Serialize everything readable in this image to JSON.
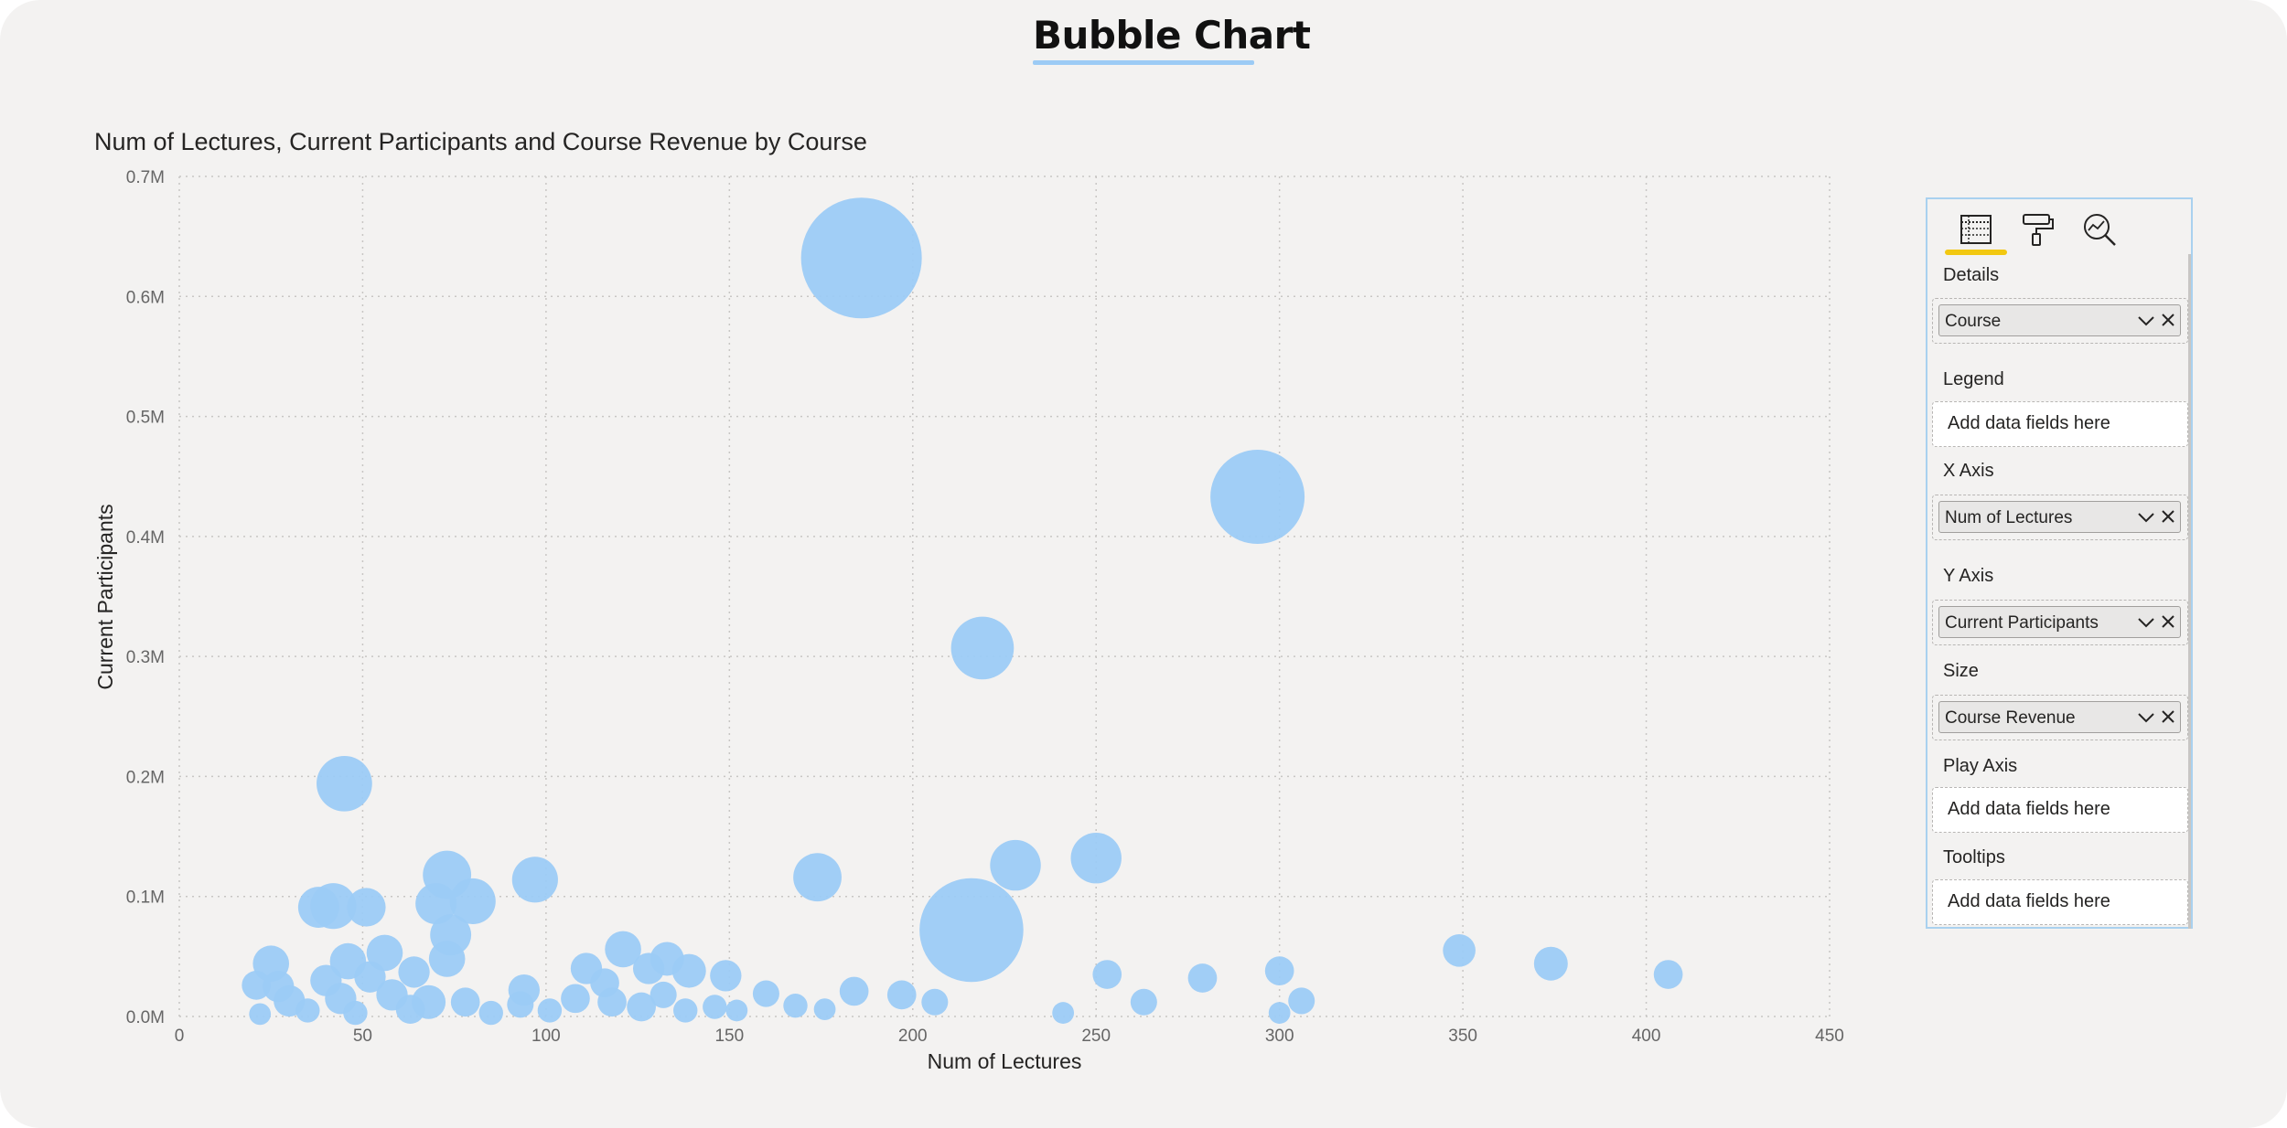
{
  "page_title": "Bubble Chart",
  "colors": {
    "background": "#f3f2f1",
    "bubble": "#9ccbf5",
    "title_underline": "#9ccbf5",
    "active_tab": "#f2c811",
    "pane_border": "#a9d1ef"
  },
  "chart_data": {
    "type": "scatter",
    "title": "Num of Lectures, Current Participants and Course Revenue by Course",
    "xlabel": "Num of Lectures",
    "ylabel": "Current Participants",
    "xlim": [
      0,
      450
    ],
    "ylim": [
      0,
      700000
    ],
    "x_ticks": [
      "0",
      "50",
      "100",
      "150",
      "200",
      "250",
      "300",
      "350",
      "400",
      "450"
    ],
    "y_ticks": [
      "0.0M",
      "0.1M",
      "0.2M",
      "0.3M",
      "0.4M",
      "0.5M",
      "0.6M",
      "0.7M"
    ],
    "grid": true,
    "bubble_size_field": "Course Revenue",
    "points": [
      {
        "x": 186,
        "y": 632000,
        "size": 100
      },
      {
        "x": 294,
        "y": 433000,
        "size": 78
      },
      {
        "x": 219,
        "y": 307000,
        "size": 52
      },
      {
        "x": 45,
        "y": 194000,
        "size": 46
      },
      {
        "x": 216,
        "y": 72000,
        "size": 86
      },
      {
        "x": 250,
        "y": 132000,
        "size": 42
      },
      {
        "x": 228,
        "y": 126000,
        "size": 42
      },
      {
        "x": 174,
        "y": 116000,
        "size": 40
      },
      {
        "x": 97,
        "y": 114000,
        "size": 38
      },
      {
        "x": 73,
        "y": 118000,
        "size": 40
      },
      {
        "x": 80,
        "y": 96000,
        "size": 38
      },
      {
        "x": 70,
        "y": 94000,
        "size": 34
      },
      {
        "x": 74,
        "y": 68000,
        "size": 34
      },
      {
        "x": 42,
        "y": 92000,
        "size": 38
      },
      {
        "x": 38,
        "y": 91000,
        "size": 34
      },
      {
        "x": 51,
        "y": 91000,
        "size": 32
      },
      {
        "x": 73,
        "y": 48000,
        "size": 30
      },
      {
        "x": 56,
        "y": 53000,
        "size": 30
      },
      {
        "x": 46,
        "y": 46000,
        "size": 30
      },
      {
        "x": 25,
        "y": 44000,
        "size": 30
      },
      {
        "x": 64,
        "y": 37000,
        "size": 26
      },
      {
        "x": 40,
        "y": 30000,
        "size": 26
      },
      {
        "x": 52,
        "y": 33000,
        "size": 26
      },
      {
        "x": 21,
        "y": 26000,
        "size": 24
      },
      {
        "x": 27,
        "y": 25000,
        "size": 26
      },
      {
        "x": 30,
        "y": 13000,
        "size": 26
      },
      {
        "x": 44,
        "y": 15000,
        "size": 26
      },
      {
        "x": 58,
        "y": 18000,
        "size": 26
      },
      {
        "x": 68,
        "y": 12000,
        "size": 28
      },
      {
        "x": 63,
        "y": 6000,
        "size": 24
      },
      {
        "x": 78,
        "y": 12000,
        "size": 24
      },
      {
        "x": 35,
        "y": 5000,
        "size": 20
      },
      {
        "x": 22,
        "y": 2000,
        "size": 18
      },
      {
        "x": 48,
        "y": 3000,
        "size": 20
      },
      {
        "x": 85,
        "y": 3000,
        "size": 20
      },
      {
        "x": 94,
        "y": 22000,
        "size": 26
      },
      {
        "x": 93,
        "y": 10000,
        "size": 22
      },
      {
        "x": 101,
        "y": 5000,
        "size": 20
      },
      {
        "x": 108,
        "y": 15000,
        "size": 24
      },
      {
        "x": 111,
        "y": 40000,
        "size": 26
      },
      {
        "x": 116,
        "y": 28000,
        "size": 24
      },
      {
        "x": 121,
        "y": 56000,
        "size": 30
      },
      {
        "x": 118,
        "y": 12000,
        "size": 24
      },
      {
        "x": 126,
        "y": 8000,
        "size": 24
      },
      {
        "x": 128,
        "y": 40000,
        "size": 26
      },
      {
        "x": 133,
        "y": 48000,
        "size": 28
      },
      {
        "x": 132,
        "y": 18000,
        "size": 22
      },
      {
        "x": 139,
        "y": 38000,
        "size": 28
      },
      {
        "x": 138,
        "y": 5000,
        "size": 20
      },
      {
        "x": 146,
        "y": 8000,
        "size": 20
      },
      {
        "x": 149,
        "y": 34000,
        "size": 26
      },
      {
        "x": 152,
        "y": 5000,
        "size": 18
      },
      {
        "x": 160,
        "y": 19000,
        "size": 22
      },
      {
        "x": 168,
        "y": 9000,
        "size": 20
      },
      {
        "x": 176,
        "y": 6000,
        "size": 18
      },
      {
        "x": 184,
        "y": 21000,
        "size": 24
      },
      {
        "x": 197,
        "y": 18000,
        "size": 24
      },
      {
        "x": 206,
        "y": 12000,
        "size": 22
      },
      {
        "x": 241,
        "y": 3000,
        "size": 18
      },
      {
        "x": 253,
        "y": 35000,
        "size": 24
      },
      {
        "x": 263,
        "y": 12000,
        "size": 22
      },
      {
        "x": 279,
        "y": 32000,
        "size": 24
      },
      {
        "x": 300,
        "y": 38000,
        "size": 24
      },
      {
        "x": 306,
        "y": 13000,
        "size": 22
      },
      {
        "x": 300,
        "y": 3000,
        "size": 18
      },
      {
        "x": 349,
        "y": 55000,
        "size": 27
      },
      {
        "x": 374,
        "y": 44000,
        "size": 28
      },
      {
        "x": 406,
        "y": 35000,
        "size": 24
      }
    ]
  },
  "fields_pane": {
    "tabs": [
      {
        "name": "fields-tab",
        "icon": "fields-icon"
      },
      {
        "name": "format-tab",
        "icon": "paint-roller-icon"
      },
      {
        "name": "analytics-tab",
        "icon": "analytics-magnifier-icon"
      }
    ],
    "wells": {
      "details": {
        "label": "Details",
        "value": "Course"
      },
      "legend": {
        "label": "Legend",
        "placeholder": "Add data fields here"
      },
      "x_axis": {
        "label": "X Axis",
        "value": "Num of Lectures"
      },
      "y_axis": {
        "label": "Y Axis",
        "value": "Current Participants"
      },
      "size": {
        "label": "Size",
        "value": "Course Revenue"
      },
      "play_axis": {
        "label": "Play Axis",
        "placeholder": "Add data fields here"
      },
      "tooltips": {
        "label": "Tooltips",
        "placeholder": "Add data fields here"
      }
    }
  }
}
